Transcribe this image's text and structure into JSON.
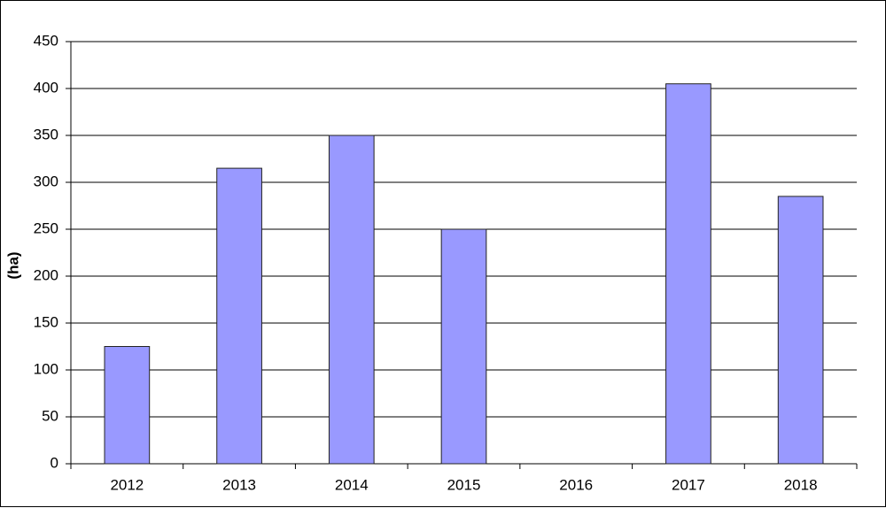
{
  "chart_data": {
    "type": "bar",
    "y_label": "(ha)",
    "categories": [
      "2012",
      "2013",
      "2014",
      "2015",
      "2016",
      "2017",
      "2018"
    ],
    "values": [
      125,
      315,
      350,
      250,
      0,
      405,
      285
    ],
    "color": "#9999ff",
    "ylim": [
      0,
      450
    ],
    "yticks": [
      0,
      50,
      100,
      150,
      200,
      250,
      300,
      350,
      400,
      450
    ],
    "grid": true
  }
}
